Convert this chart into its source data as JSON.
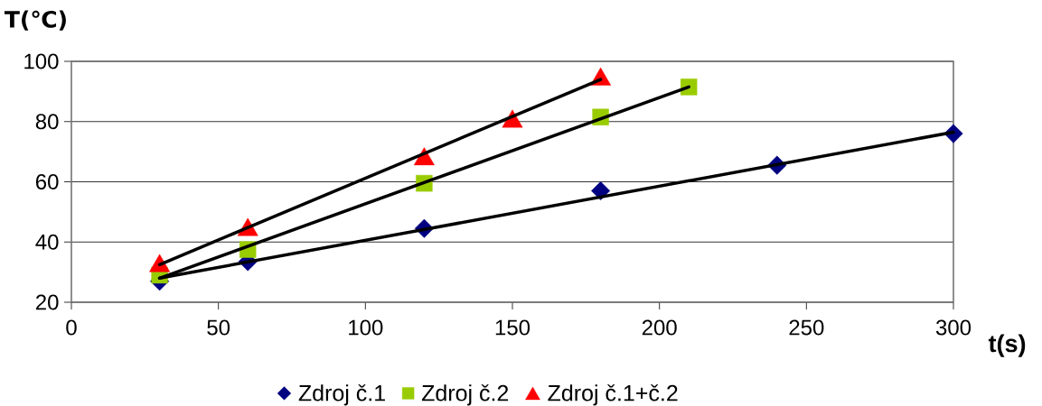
{
  "chart_data": {
    "type": "scatter",
    "xlabel": "t(s)",
    "ylabel": "T(℃)",
    "xlim": [
      0,
      300
    ],
    "ylim": [
      20,
      100
    ],
    "xticks": [
      0,
      50,
      100,
      150,
      200,
      250,
      300
    ],
    "yticks": [
      20,
      40,
      60,
      80,
      100
    ],
    "grid": "y",
    "legend": "bottom",
    "series": [
      {
        "name": "Zdroj č.1",
        "color": "#000080",
        "marker": "diamond",
        "x": [
          30,
          60,
          120,
          180,
          240,
          300
        ],
        "values": [
          27,
          33.5,
          44.5,
          57,
          65.5,
          76
        ]
      },
      {
        "name": "Zdroj č.2",
        "color": "#99cc00",
        "marker": "square",
        "x": [
          30,
          60,
          120,
          180,
          210
        ],
        "values": [
          29,
          37.5,
          59.5,
          81.5,
          91.5
        ]
      },
      {
        "name": "Zdroj č.1+č.2",
        "color": "#ff0000",
        "marker": "triangle",
        "x": [
          30,
          60,
          120,
          150,
          180
        ],
        "values": [
          33,
          45,
          68.5,
          81,
          95
        ]
      },
      {
        "type": "line",
        "color": "#000000",
        "x": [
          30,
          300
        ],
        "values": [
          28,
          76.5
        ]
      },
      {
        "type": "line",
        "color": "#000000",
        "x": [
          30,
          210
        ],
        "values": [
          28,
          91.5
        ]
      },
      {
        "type": "line",
        "color": "#000000",
        "x": [
          30,
          180
        ],
        "values": [
          32.5,
          94
        ]
      }
    ]
  }
}
